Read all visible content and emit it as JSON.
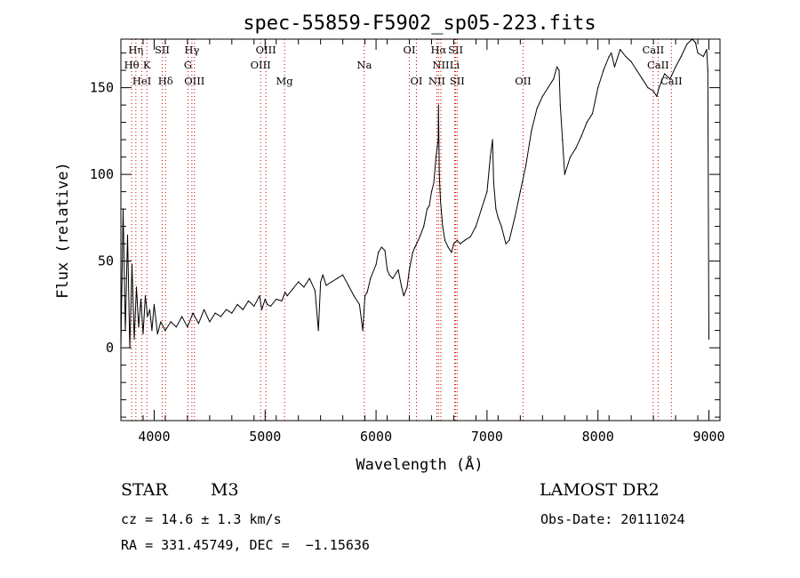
{
  "chart_data": {
    "type": "line",
    "title": "spec-55859-F5902_sp05-223.fits",
    "xlabel": "Wavelength (Å)",
    "ylabel": "Flux (relative)",
    "xlim": [
      3700,
      9100
    ],
    "ylim": [
      -42,
      178
    ],
    "xticks": [
      4000,
      5000,
      6000,
      7000,
      8000,
      9000
    ],
    "yticks": [
      0,
      50,
      100,
      150
    ],
    "grid": false,
    "line_color": "#000000",
    "marker_color": "#cc0000",
    "series": [
      {
        "x": [
          3700,
          3720,
          3740,
          3760,
          3780,
          3800,
          3820,
          3840,
          3860,
          3880,
          3900,
          3920,
          3940,
          3960,
          3980,
          4000,
          4030,
          4060,
          4100,
          4150,
          4200,
          4250,
          4300,
          4350,
          4400,
          4450,
          4500,
          4550,
          4600,
          4650,
          4700,
          4750,
          4800,
          4850,
          4900,
          4950,
          4970,
          5000,
          5020,
          5050,
          5100,
          5150,
          5180,
          5200,
          5250,
          5300,
          5350,
          5400,
          5450,
          5480,
          5500,
          5520,
          5550,
          5600,
          5650,
          5700,
          5750,
          5800,
          5850,
          5880,
          5900,
          5920,
          5950,
          6000,
          6020,
          6050,
          6080,
          6100,
          6120,
          6150,
          6200,
          6230,
          6250,
          6280,
          6300,
          6330,
          6350,
          6380,
          6400,
          6430,
          6460,
          6480,
          6500,
          6520,
          6540,
          6550,
          6560,
          6563,
          6570,
          6580,
          6600,
          6620,
          6650,
          6680,
          6700,
          6730,
          6760,
          6800,
          6850,
          6900,
          6950,
          7000,
          7030,
          7050,
          7060,
          7080,
          7100,
          7130,
          7150,
          7170,
          7200,
          7250,
          7300,
          7350,
          7400,
          7450,
          7500,
          7550,
          7600,
          7630,
          7650,
          7660,
          7680,
          7700,
          7750,
          7800,
          7850,
          7900,
          7950,
          8000,
          8050,
          8100,
          8120,
          8150,
          8200,
          8250,
          8300,
          8350,
          8400,
          8450,
          8500,
          8530,
          8550,
          8600,
          8650,
          8700,
          8750,
          8800,
          8850,
          8880,
          8900,
          8950,
          8980,
          8990,
          9000
        ],
        "y": [
          0,
          80,
          10,
          65,
          0,
          48,
          5,
          35,
          12,
          28,
          8,
          30,
          18,
          22,
          10,
          25,
          8,
          15,
          10,
          15,
          12,
          18,
          12,
          20,
          14,
          22,
          15,
          20,
          18,
          22,
          20,
          25,
          22,
          27,
          24,
          30,
          22,
          28,
          25,
          24,
          28,
          27,
          32,
          30,
          34,
          38,
          35,
          40,
          33,
          10,
          38,
          42,
          36,
          38,
          40,
          42,
          36,
          30,
          25,
          10,
          30,
          32,
          40,
          48,
          55,
          58,
          56,
          45,
          42,
          40,
          45,
          35,
          30,
          35,
          45,
          55,
          58,
          62,
          65,
          70,
          80,
          82,
          90,
          95,
          110,
          115,
          120,
          140,
          100,
          85,
          70,
          62,
          58,
          55,
          60,
          62,
          60,
          62,
          64,
          70,
          80,
          90,
          110,
          120,
          95,
          80,
          75,
          70,
          65,
          60,
          62,
          75,
          90,
          105,
          125,
          138,
          145,
          150,
          155,
          162,
          160,
          140,
          120,
          100,
          110,
          115,
          122,
          130,
          135,
          150,
          160,
          168,
          170,
          162,
          172,
          168,
          165,
          160,
          155,
          150,
          148,
          145,
          150,
          158,
          155,
          162,
          168,
          175,
          178,
          176,
          170,
          168,
          172,
          160,
          5
        ]
      }
    ],
    "line_markers": [
      {
        "name": "Hη",
        "wl": 3835,
        "row": 1
      },
      {
        "name": "Hθ",
        "wl": 3797,
        "row": 2
      },
      {
        "name": "K",
        "wl": 3934,
        "row": 2
      },
      {
        "name": "HeI",
        "wl": 3889,
        "row": 3
      },
      {
        "name": "SII",
        "wl": 4072,
        "row": 1
      },
      {
        "name": "Hδ",
        "wl": 4102,
        "row": 3
      },
      {
        "name": "Hγ",
        "wl": 4340,
        "row": 1
      },
      {
        "name": "G",
        "wl": 4305,
        "row": 2
      },
      {
        "name": "OIII",
        "wl": 4363,
        "row": 3
      },
      {
        "name": "OIII",
        "wl": 5007,
        "row": 1
      },
      {
        "name": "OIII",
        "wl": 4959,
        "row": 2
      },
      {
        "name": "Mg",
        "wl": 5175,
        "row": 3
      },
      {
        "name": "Na",
        "wl": 5894,
        "row": 2
      },
      {
        "name": "OI",
        "wl": 6300,
        "row": 1
      },
      {
        "name": "OI",
        "wl": 6364,
        "row": 3
      },
      {
        "name": "Hα",
        "wl": 6563,
        "row": 1
      },
      {
        "name": "SII",
        "wl": 6717,
        "row": 1
      },
      {
        "name": "NII",
        "wl": 6584,
        "row": 2
      },
      {
        "name": "Li",
        "wl": 6708,
        "row": 2
      },
      {
        "name": "NII",
        "wl": 6548,
        "row": 3
      },
      {
        "name": "SII",
        "wl": 6731,
        "row": 3
      },
      {
        "name": "OII",
        "wl": 7325,
        "row": 3
      },
      {
        "name": "CaII",
        "wl": 8498,
        "row": 1
      },
      {
        "name": "CaII",
        "wl": 8542,
        "row": 2
      },
      {
        "name": "CaII",
        "wl": 8662,
        "row": 3
      }
    ]
  },
  "info": {
    "class": "STAR",
    "subclass": "M3",
    "survey": "LAMOST DR2",
    "cz": "cz = 14.6 ± 1.3 km/s",
    "obs_date": "Obs-Date: 20111024",
    "coords": "RA = 331.45749, DEC =  −1.15636"
  }
}
